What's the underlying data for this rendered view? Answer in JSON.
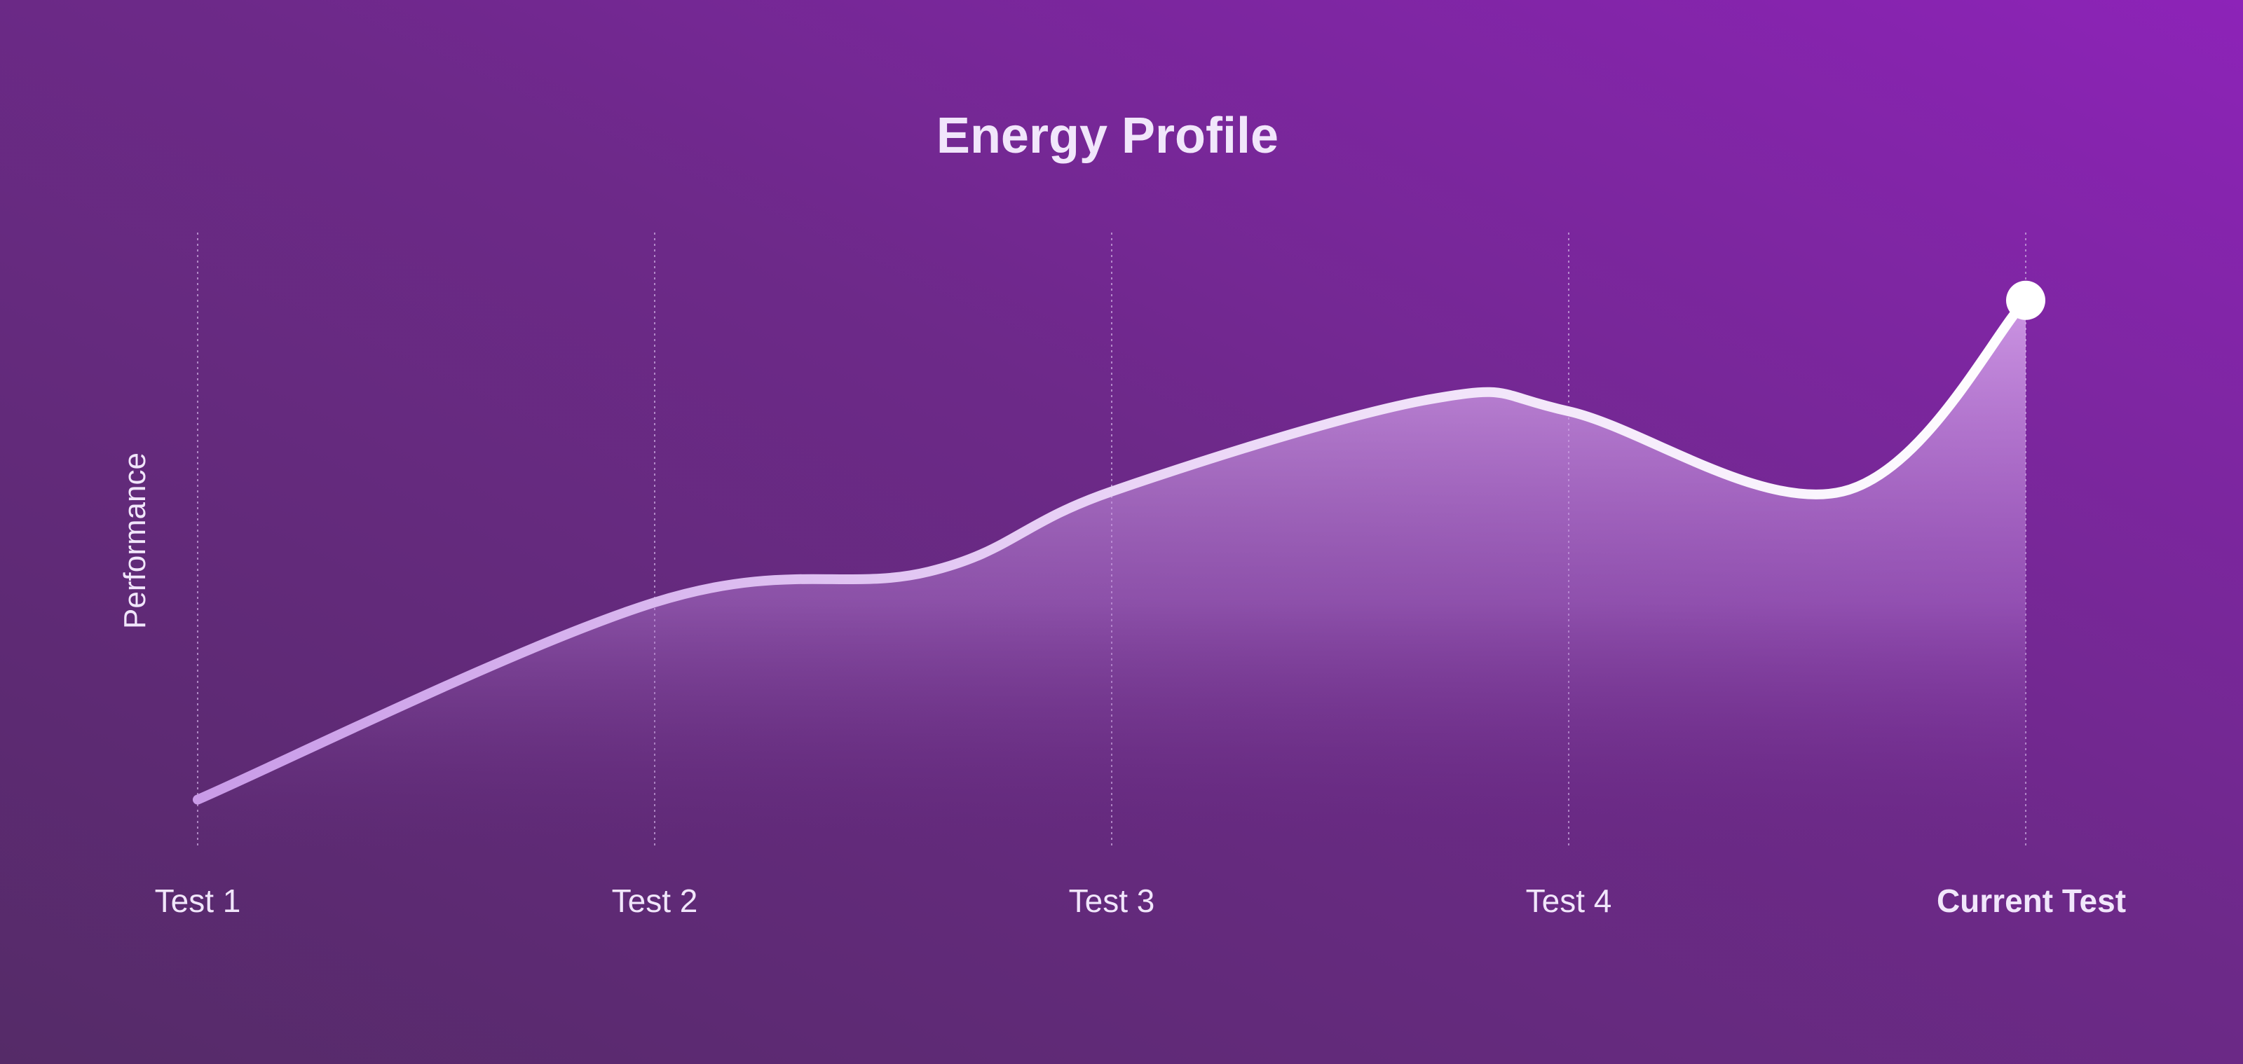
{
  "chart_data": {
    "type": "area",
    "title": "Energy Profile",
    "ylabel": "Performance",
    "xlabel": "",
    "categories": [
      "Test 1",
      "Test 2",
      "Test 3",
      "Test 4",
      "Current Test"
    ],
    "highlighted_category": "Current Test",
    "curve": [
      {
        "x": 0.0,
        "y": 0.08
      },
      {
        "x": 1.0,
        "y": 0.4
      },
      {
        "x": 1.6,
        "y": 0.45
      },
      {
        "x": 2.0,
        "y": 0.58
      },
      {
        "x": 2.7,
        "y": 0.73
      },
      {
        "x": 3.0,
        "y": 0.71
      },
      {
        "x": 3.6,
        "y": 0.58
      },
      {
        "x": 4.0,
        "y": 0.89
      }
    ],
    "values": [
      0.08,
      0.4,
      0.58,
      0.71,
      0.89
    ],
    "ylim": [
      0,
      1
    ],
    "grid": "vertical dotted",
    "end_marker": true,
    "colors": {
      "background_dark": "#592c6e",
      "background_light": "#8b24b5",
      "line_start": "#c99be8",
      "line_end": "#ffffff",
      "text": "#f1e6fb",
      "gridline": "#c9a8de"
    }
  }
}
